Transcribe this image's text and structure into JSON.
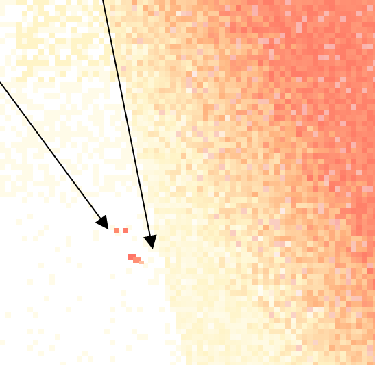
{
  "image": {
    "kind": "pixelated-heatmap-crop",
    "background_color": "#ffffff",
    "palette": {
      "white": "#ffffff",
      "cream": "#fffbe8",
      "pale_yellow": "#fff4c7",
      "light_peach": "#ffe3b5",
      "peach": "#ffcf9e",
      "orange": "#ffb27e",
      "salmon": "#ff9b7a",
      "red": "#ff6f5f",
      "pink": "#f8c6c8"
    },
    "arrows": [
      {
        "name": "left-arrow",
        "color": "#000000"
      },
      {
        "name": "right-arrow",
        "color": "#000000"
      }
    ],
    "markers": [
      {
        "name": "red-speck",
        "color": "#ff6f5f"
      },
      {
        "name": "red-speck",
        "color": "#ff6f5f"
      },
      {
        "name": "red-blob",
        "color": "#ff6f5f"
      }
    ]
  }
}
